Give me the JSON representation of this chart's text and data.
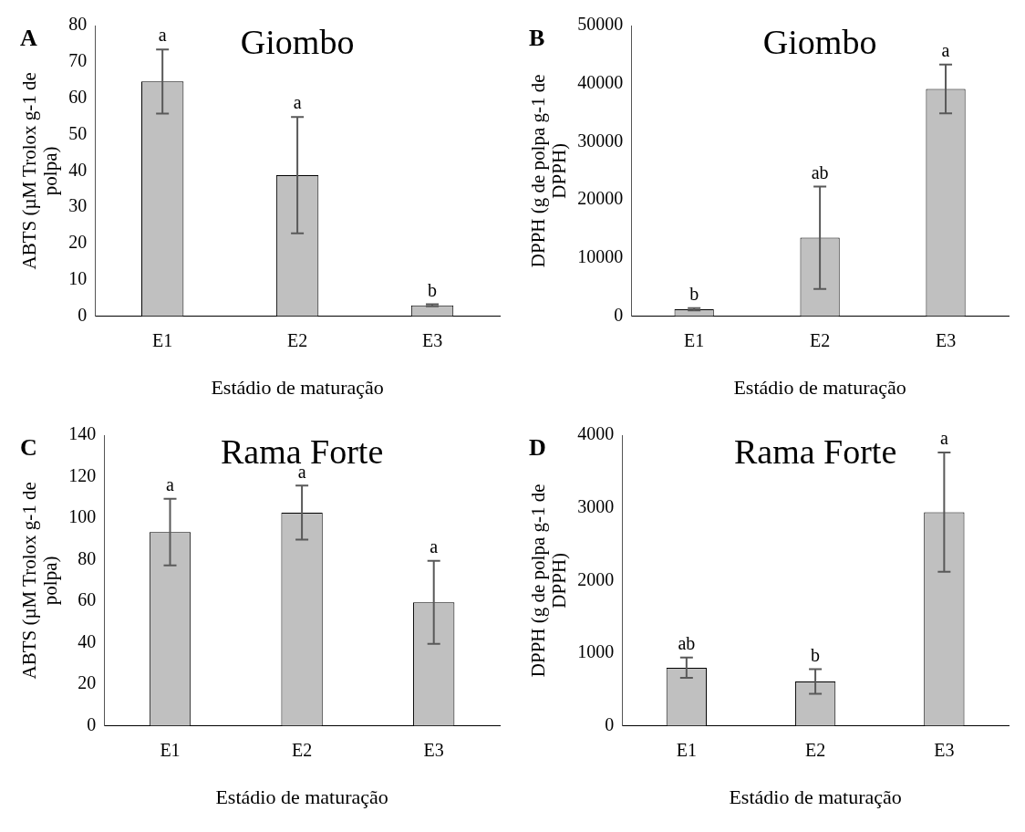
{
  "chart_data": [
    {
      "type": "bar",
      "title": "Giombo",
      "xlabel": "Estádio de maturação",
      "ylabel": "ABTS (µM Trolox g-1 de polpa)",
      "categories": [
        "E1",
        "E2",
        "E3"
      ],
      "values": [
        64.6,
        38.8,
        3
      ],
      "errors": [
        8.8,
        16,
        0.3
      ],
      "color": "#c0c0c0",
      "ylim": [
        0,
        80
      ],
      "yticks": [
        0,
        10,
        20,
        30,
        40,
        50,
        60,
        70,
        80
      ],
      "grid": false,
      "legend": false,
      "annotations": [
        "A",
        {
          "text": "a",
          "x": "E1",
          "y": 73.5
        },
        {
          "text": "a",
          "x": "E2",
          "y": 55
        },
        {
          "text": "b",
          "x": "E3",
          "y": 3.3
        }
      ]
    },
    {
      "type": "bar",
      "title": "Giombo",
      "xlabel": "Estádio de maturação",
      "ylabel": "DPPH (g de polpa g-1 de DPPH)",
      "categories": [
        "E1",
        "E2",
        "E3"
      ],
      "values": [
        1200,
        13500,
        39100
      ],
      "errors": [
        200,
        8800,
        4200
      ],
      "color": "#c0c0c0",
      "ylim": [
        0,
        50000
      ],
      "yticks": [
        0,
        10000,
        20000,
        30000,
        40000,
        50000
      ],
      "grid": false,
      "legend": false,
      "annotations": [
        "B",
        {
          "text": "b",
          "x": "E1",
          "y": 1400
        },
        {
          "text": "ab",
          "x": "E2",
          "y": 22300
        },
        {
          "text": "a",
          "x": "E3",
          "y": 43300
        }
      ]
    },
    {
      "type": "bar",
      "title": "Rama Forte",
      "xlabel": "Estádio de maturação",
      "ylabel": "ABTS (µM Trolox g-1 de polpa)",
      "categories": [
        "E1",
        "E2",
        "E3"
      ],
      "values": [
        93.3,
        102.7,
        59.5
      ],
      "errors": [
        16,
        13,
        20
      ],
      "color": "#c0c0c0",
      "ylim": [
        0,
        140
      ],
      "yticks": [
        0,
        20,
        40,
        60,
        80,
        100,
        120,
        140
      ],
      "grid": false,
      "legend": false,
      "annotations": [
        "C",
        {
          "text": "a",
          "x": "E1",
          "y": 109.3
        },
        {
          "text": "a",
          "x": "E2",
          "y": 115.7
        },
        {
          "text": "a",
          "x": "E3",
          "y": 79.5
        }
      ]
    },
    {
      "type": "bar",
      "title": "Rama Forte",
      "xlabel": "Estádio de maturação",
      "ylabel": "DPPH (g de polpa g-1 de DPPH)",
      "categories": [
        "E1",
        "E2",
        "E3"
      ],
      "values": [
        800,
        610,
        2940
      ],
      "errors": [
        140,
        170,
        820
      ],
      "color": "#c0c0c0",
      "ylim": [
        0,
        4000
      ],
      "yticks": [
        0,
        1000,
        2000,
        3000,
        4000
      ],
      "grid": false,
      "legend": false,
      "annotations": [
        "D",
        {
          "text": "ab",
          "x": "E1",
          "y": 940
        },
        {
          "text": "b",
          "x": "E2",
          "y": 780
        },
        {
          "text": "a",
          "x": "E3",
          "y": 3760
        }
      ]
    }
  ]
}
